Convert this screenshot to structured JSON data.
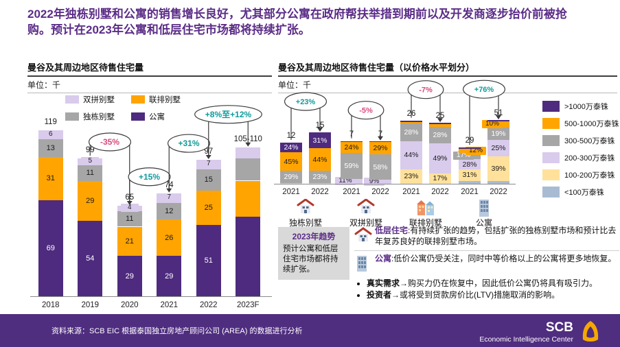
{
  "header": {
    "title": "2022年独栋别墅和公寓的销售增长良好，尤其部分公寓在政府帮扶举措到期前以及开发商逐步抬价前被抢购。预计在2023年公寓和低层住宅市场都将持续扩张。"
  },
  "palette": {
    "purple": "#4E2B7E",
    "orange": "#FFA400",
    "gray": "#A6A6A6",
    "lavender": "#D9CBEC",
    "lightyellow": "#FFE19B",
    "bluegray": "#A9BBD3",
    "up": "#0E9B9B",
    "down": "#D9487E",
    "title_purple": "#5B2C87",
    "footer_purple": "#4F2D7F",
    "accent_gold": "#F6A800"
  },
  "chart_data": [
    {
      "type": "bar",
      "stacked": true,
      "title": "曼谷及其周边地区待售住宅量",
      "unit_label": "单位：千",
      "categories": [
        "2018",
        "2019",
        "2020",
        "2021",
        "2022",
        "2023F"
      ],
      "totals_text": [
        "119",
        "99",
        "65",
        "74",
        "97",
        "105-110"
      ],
      "totals_value": [
        119,
        99,
        65,
        74,
        97,
        107
      ],
      "show_labels": [
        true,
        true,
        true,
        true,
        true,
        false
      ],
      "series": [
        {
          "name": "公寓",
          "color": "purple",
          "label_color": "#ffffff",
          "values": [
            69,
            54,
            29,
            29,
            51,
            57
          ]
        },
        {
          "name": "联排别墅",
          "color": "orange",
          "label_color": "#1a1a1a",
          "values": [
            31,
            29,
            21,
            26,
            25,
            26
          ]
        },
        {
          "name": "独栋别墅",
          "color": "gray",
          "label_color": "#1a1a1a",
          "values": [
            13,
            11,
            11,
            12,
            15,
            16
          ]
        },
        {
          "name": "双拼别墅",
          "color": "lavender",
          "label_color": "#1a1a1a",
          "values": [
            6,
            5,
            4,
            7,
            7,
            8
          ],
          "chip": true
        }
      ],
      "legend": [
        {
          "label": "双拼别墅",
          "color": "lavender"
        },
        {
          "label": "联排别墅",
          "color": "orange"
        },
        {
          "label": "独栋别墅",
          "color": "gray"
        },
        {
          "label": "公寓",
          "color": "purple"
        }
      ],
      "annotations": [
        {
          "label": "-35%",
          "sentiment": "down",
          "from": 1,
          "to": 2
        },
        {
          "label": "+15%",
          "sentiment": "up",
          "from": 2,
          "to": 3
        },
        {
          "label": "+31%",
          "sentiment": "up",
          "from": 3,
          "to": 4
        },
        {
          "label": "+8%至+12%",
          "sentiment": "up",
          "from": 4,
          "to": 5,
          "wide": true
        }
      ]
    },
    {
      "type": "bar",
      "stacked": true,
      "percent": true,
      "title": "曼谷及其周边地区待售住宅量（以价格水平划分）",
      "unit_label": "单位：千",
      "years": [
        "2021",
        "2022"
      ],
      "groups": [
        {
          "name": "独栋别墅",
          "icon": "detached-house-icon",
          "annotation": {
            "label": "+23%",
            "sentiment": "up"
          },
          "bars": [
            {
              "total_text": "12",
              "total": 12,
              "segments": [
                {
                  "color": "lavender",
                  "pct": 2,
                  "label": ""
                },
                {
                  "color": "gray",
                  "pct": 29,
                  "label": "29%"
                },
                {
                  "color": "orange",
                  "pct": 45,
                  "label": "45%"
                },
                {
                  "color": "purple",
                  "pct": 24,
                  "label": "24%"
                }
              ]
            },
            {
              "total_text": "15",
              "total": 15,
              "segments": [
                {
                  "color": "lavender",
                  "pct": 2,
                  "label": ""
                },
                {
                  "color": "gray",
                  "pct": 23,
                  "label": "23%"
                },
                {
                  "color": "orange",
                  "pct": 44,
                  "label": "44%"
                },
                {
                  "color": "purple",
                  "pct": 31,
                  "label": "31%"
                }
              ]
            }
          ]
        },
        {
          "name": "双拼别墅",
          "icon": "duplex-house-icon",
          "annotation": {
            "label": "-5%",
            "sentiment": "down"
          },
          "bars": [
            {
              "total_text": "7",
              "total": 7,
              "segments": [
                {
                  "color": "lavender",
                  "pct": 11,
                  "label": "11%"
                },
                {
                  "color": "gray",
                  "pct": 59,
                  "label": "59%"
                },
                {
                  "color": "orange",
                  "pct": 24,
                  "label": "24%"
                },
                {
                  "color": "purple",
                  "pct": 2,
                  "label": ""
                }
              ]
            },
            {
              "total_text": "7",
              "total": 7,
              "segments": [
                {
                  "color": "lavender",
                  "pct": 9,
                  "label": "9%"
                },
                {
                  "color": "gray",
                  "pct": 58,
                  "label": "58%"
                },
                {
                  "color": "orange",
                  "pct": 29,
                  "label": "29%"
                },
                {
                  "color": "purple",
                  "pct": 2,
                  "label": ""
                }
              ]
            }
          ]
        },
        {
          "name": "联排别墅",
          "icon": "townhouse-icon",
          "annotation": {
            "label": "-7%",
            "sentiment": "down"
          },
          "bars": [
            {
              "total_text": "26",
              "total": 26,
              "segments": [
                {
                  "color": "lightyellow",
                  "pct": 23,
                  "label": "23%"
                },
                {
                  "color": "lavender",
                  "pct": 44,
                  "label": "44%"
                },
                {
                  "color": "gray",
                  "pct": 28,
                  "label": "28%"
                },
                {
                  "color": "orange",
                  "pct": 3,
                  "label": ""
                },
                {
                  "color": "purple",
                  "pct": 2,
                  "label": ""
                }
              ]
            },
            {
              "total_text": "25",
              "total": 25,
              "segments": [
                {
                  "color": "lightyellow",
                  "pct": 17,
                  "label": "17%"
                },
                {
                  "color": "lavender",
                  "pct": 49,
                  "label": "49%"
                },
                {
                  "color": "gray",
                  "pct": 28,
                  "label": "28%"
                },
                {
                  "color": "orange",
                  "pct": 4,
                  "label": ""
                },
                {
                  "color": "purple",
                  "pct": 2,
                  "label": ""
                }
              ]
            }
          ]
        },
        {
          "name": "公寓",
          "icon": "condo-icon",
          "annotation": {
            "label": "+76%",
            "sentiment": "up"
          },
          "bars": [
            {
              "total_text": "29",
              "total": 29,
              "segments": [
                {
                  "color": "bluegray",
                  "pct": 8,
                  "label": ""
                },
                {
                  "color": "lightyellow",
                  "pct": 31,
                  "label": "31%"
                },
                {
                  "color": "lavender",
                  "pct": 28,
                  "label": "28%"
                },
                {
                  "color": "gray",
                  "pct": 17,
                  "label": "17%"
                },
                {
                  "color": "orange",
                  "pct": 12,
                  "label": "12%"
                },
                {
                  "color": "purple",
                  "pct": 3,
                  "label": ""
                }
              ]
            },
            {
              "total_text": "51",
              "total": 51,
              "segments": [
                {
                  "color": "bluegray",
                  "pct": 4,
                  "label": ""
                },
                {
                  "color": "lightyellow",
                  "pct": 39,
                  "label": "39%"
                },
                {
                  "color": "lavender",
                  "pct": 25,
                  "label": "25%"
                },
                {
                  "color": "gray",
                  "pct": 19,
                  "label": "19%"
                },
                {
                  "color": "orange",
                  "pct": 10,
                  "label": "10%"
                },
                {
                  "color": "purple",
                  "pct": 2,
                  "label": ""
                }
              ]
            }
          ]
        }
      ],
      "legend": [
        {
          "label": ">1000万泰铢",
          "color": "purple"
        },
        {
          "label": "500-1000万泰铢",
          "color": "orange"
        },
        {
          "label": "300-500万泰铢",
          "color": "gray"
        },
        {
          "label": "200-300万泰铢",
          "color": "lavender"
        },
        {
          "label": "100-200万泰铢",
          "color": "lightyellow"
        },
        {
          "label": "<100万泰铢",
          "color": "bluegray"
        }
      ]
    }
  ],
  "trends": {
    "title": "2023年趋势",
    "body": "预计公寓和低层住宅市场都将持续扩张。"
  },
  "insights": {
    "items": [
      {
        "lead": "低层住宅",
        "text": ":有持续扩张的趋势，包括扩张的独栋别墅市场和预计比去年复苏良好的联排别墅市场。"
      },
      {
        "lead": "公寓",
        "text": ":低价公寓仍受关注，同时中等价格以上的公寓将更多地恢复。"
      }
    ],
    "bullets": [
      {
        "lead": "真实需求",
        "arrow": "→",
        "text": "购买力仍在恢复中，因此低价公寓仍将具有吸引力。"
      },
      {
        "lead": "投资者",
        "arrow": "→",
        "text": "或将受到贷款房价比(LTV)措施取消的影响。"
      }
    ]
  },
  "footer": {
    "source": "资料来源：SCB EIC 根据泰国独立房地产顾问公司 (AREA) 的数据进行分析",
    "brand": "SCB",
    "brand_sub": "Economic Intelligence Center"
  }
}
